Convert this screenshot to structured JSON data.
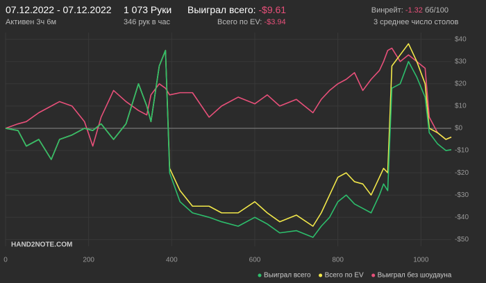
{
  "header": {
    "date_range": "07.12.2022 - 07.12.2022",
    "active": "Активен 3ч 6м",
    "hands": "1 073 Руки",
    "hands_per_hour": "346 рук в час",
    "won_label": "Выиграл всего:",
    "won_value": "-$9.61",
    "ev_label": "Всего по EV:",
    "ev_value": "-$3.94",
    "winrate_label": "Винрейт:",
    "winrate_value": "-1.32",
    "winrate_unit": "бб/100",
    "tables": "3 среднее число столов",
    "watermark": "HAND2NOTE.COM"
  },
  "chart_data": {
    "type": "line",
    "x": [
      0,
      30,
      50,
      80,
      110,
      130,
      160,
      190,
      210,
      230,
      260,
      290,
      320,
      340,
      350,
      370,
      385,
      395,
      420,
      450,
      490,
      520,
      560,
      600,
      630,
      660,
      700,
      740,
      760,
      780,
      800,
      820,
      840,
      860,
      880,
      900,
      910,
      920,
      930,
      950,
      970,
      990,
      1010,
      1020,
      1040,
      1060,
      1073
    ],
    "series": [
      {
        "name": "Выиграл без шоудауна",
        "color": "#e8507a",
        "values": [
          0,
          2,
          3,
          7,
          10,
          12,
          10,
          3,
          -8,
          5,
          17,
          12,
          8,
          6,
          15,
          20,
          18,
          15,
          16,
          16,
          5,
          10,
          14,
          11,
          15,
          10,
          13,
          7,
          13,
          17,
          20,
          22,
          25,
          17,
          22,
          26,
          30,
          35,
          36,
          30,
          33,
          30,
          27,
          5,
          -2,
          -5,
          -4
        ]
      },
      {
        "name": "Всего по EV",
        "color": "#f2e84a",
        "values": [
          0,
          -1,
          -8,
          -5,
          -14,
          -5,
          -3,
          0,
          -1,
          2,
          -5,
          2,
          20,
          10,
          3,
          28,
          35,
          -18,
          -28,
          -35,
          -35,
          -38,
          -38,
          -33,
          -38,
          -42,
          -39,
          -44,
          -38,
          -30,
          -22,
          -20,
          -24,
          -25,
          -30,
          -22,
          -18,
          -20,
          28,
          33,
          38,
          30,
          20,
          0,
          -2,
          -5,
          -3.94
        ]
      },
      {
        "name": "Выиграл всего",
        "color": "#2dbe6c",
        "values": [
          0,
          -1,
          -8,
          -5,
          -14,
          -5,
          -3,
          0,
          -1,
          2,
          -5,
          2,
          20,
          10,
          3,
          28,
          35,
          -20,
          -33,
          -38,
          -40,
          -42,
          -44,
          -40,
          -43,
          -47,
          -46,
          -49,
          -44,
          -40,
          -33,
          -30,
          -34,
          -36,
          -38,
          -30,
          -25,
          -28,
          18,
          20,
          30,
          23,
          14,
          -2,
          -7,
          -10,
          -9.61
        ]
      }
    ],
    "legend_order": [
      2,
      1,
      0
    ],
    "xlim": [
      0,
      1073
    ],
    "xticks": [
      0,
      200,
      400,
      600,
      800,
      1000
    ],
    "ylim": [
      -53,
      43
    ],
    "yticks": [
      {
        "value": -50,
        "label": "-$50"
      },
      {
        "value": -40,
        "label": "-$40"
      },
      {
        "value": -30,
        "label": "-$30"
      },
      {
        "value": -20,
        "label": "-$20"
      },
      {
        "value": -10,
        "label": "-$10"
      },
      {
        "value": 0,
        "label": "$0"
      },
      {
        "value": 10,
        "label": "$10"
      },
      {
        "value": 20,
        "label": "$20"
      },
      {
        "value": 30,
        "label": "$30"
      },
      {
        "value": 40,
        "label": "$40"
      }
    ],
    "grid": true
  }
}
